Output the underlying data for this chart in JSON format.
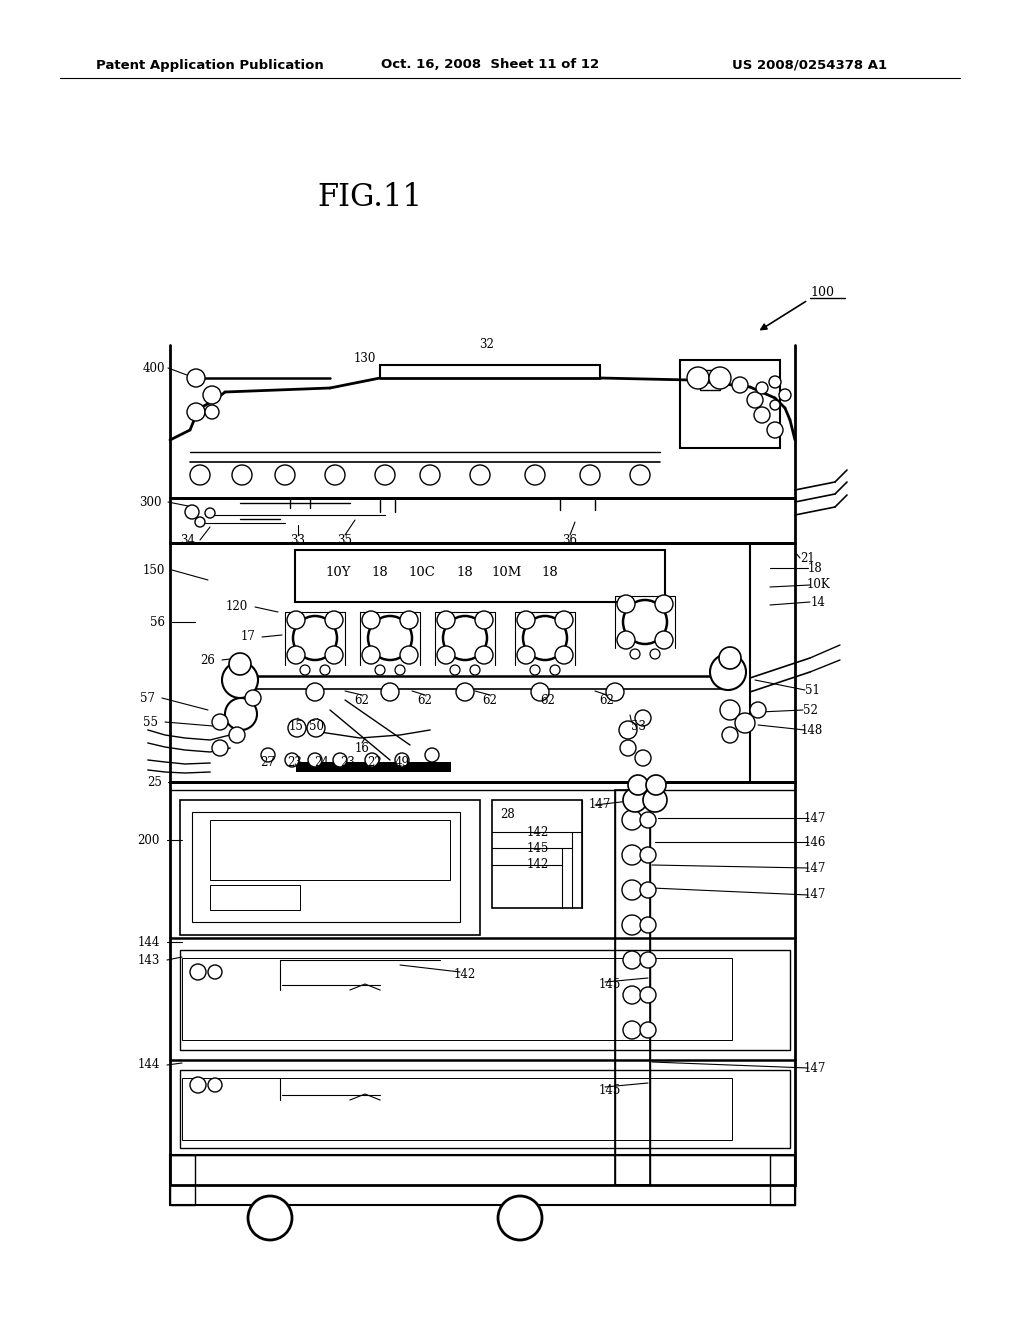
{
  "bg_color": "#ffffff",
  "header_left": "Patent Application Publication",
  "header_mid": "Oct. 16, 2008  Sheet 11 of 12",
  "header_right": "US 2008/0254378 A1",
  "fig_title": "FIG.11"
}
